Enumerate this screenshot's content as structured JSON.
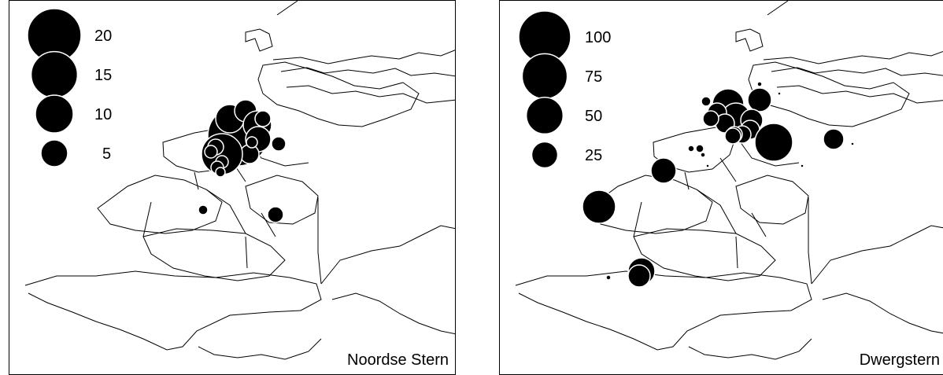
{
  "colors": {
    "marker": "#000000",
    "marker_outline": "#ffffff",
    "coast": "#000000",
    "background": "#ffffff"
  },
  "maps": [
    {
      "species": "Noordse Stern",
      "legend": [
        {
          "value": 20,
          "label": "20"
        },
        {
          "value": 15,
          "label": "15"
        },
        {
          "value": 10,
          "label": "10"
        },
        {
          "value": 5,
          "label": "5"
        }
      ]
    },
    {
      "species": "Dwergstern",
      "legend": [
        {
          "value": 100,
          "label": "100"
        },
        {
          "value": 75,
          "label": "75"
        },
        {
          "value": 50,
          "label": "50"
        },
        {
          "value": 25,
          "label": "25"
        }
      ]
    }
  ]
}
